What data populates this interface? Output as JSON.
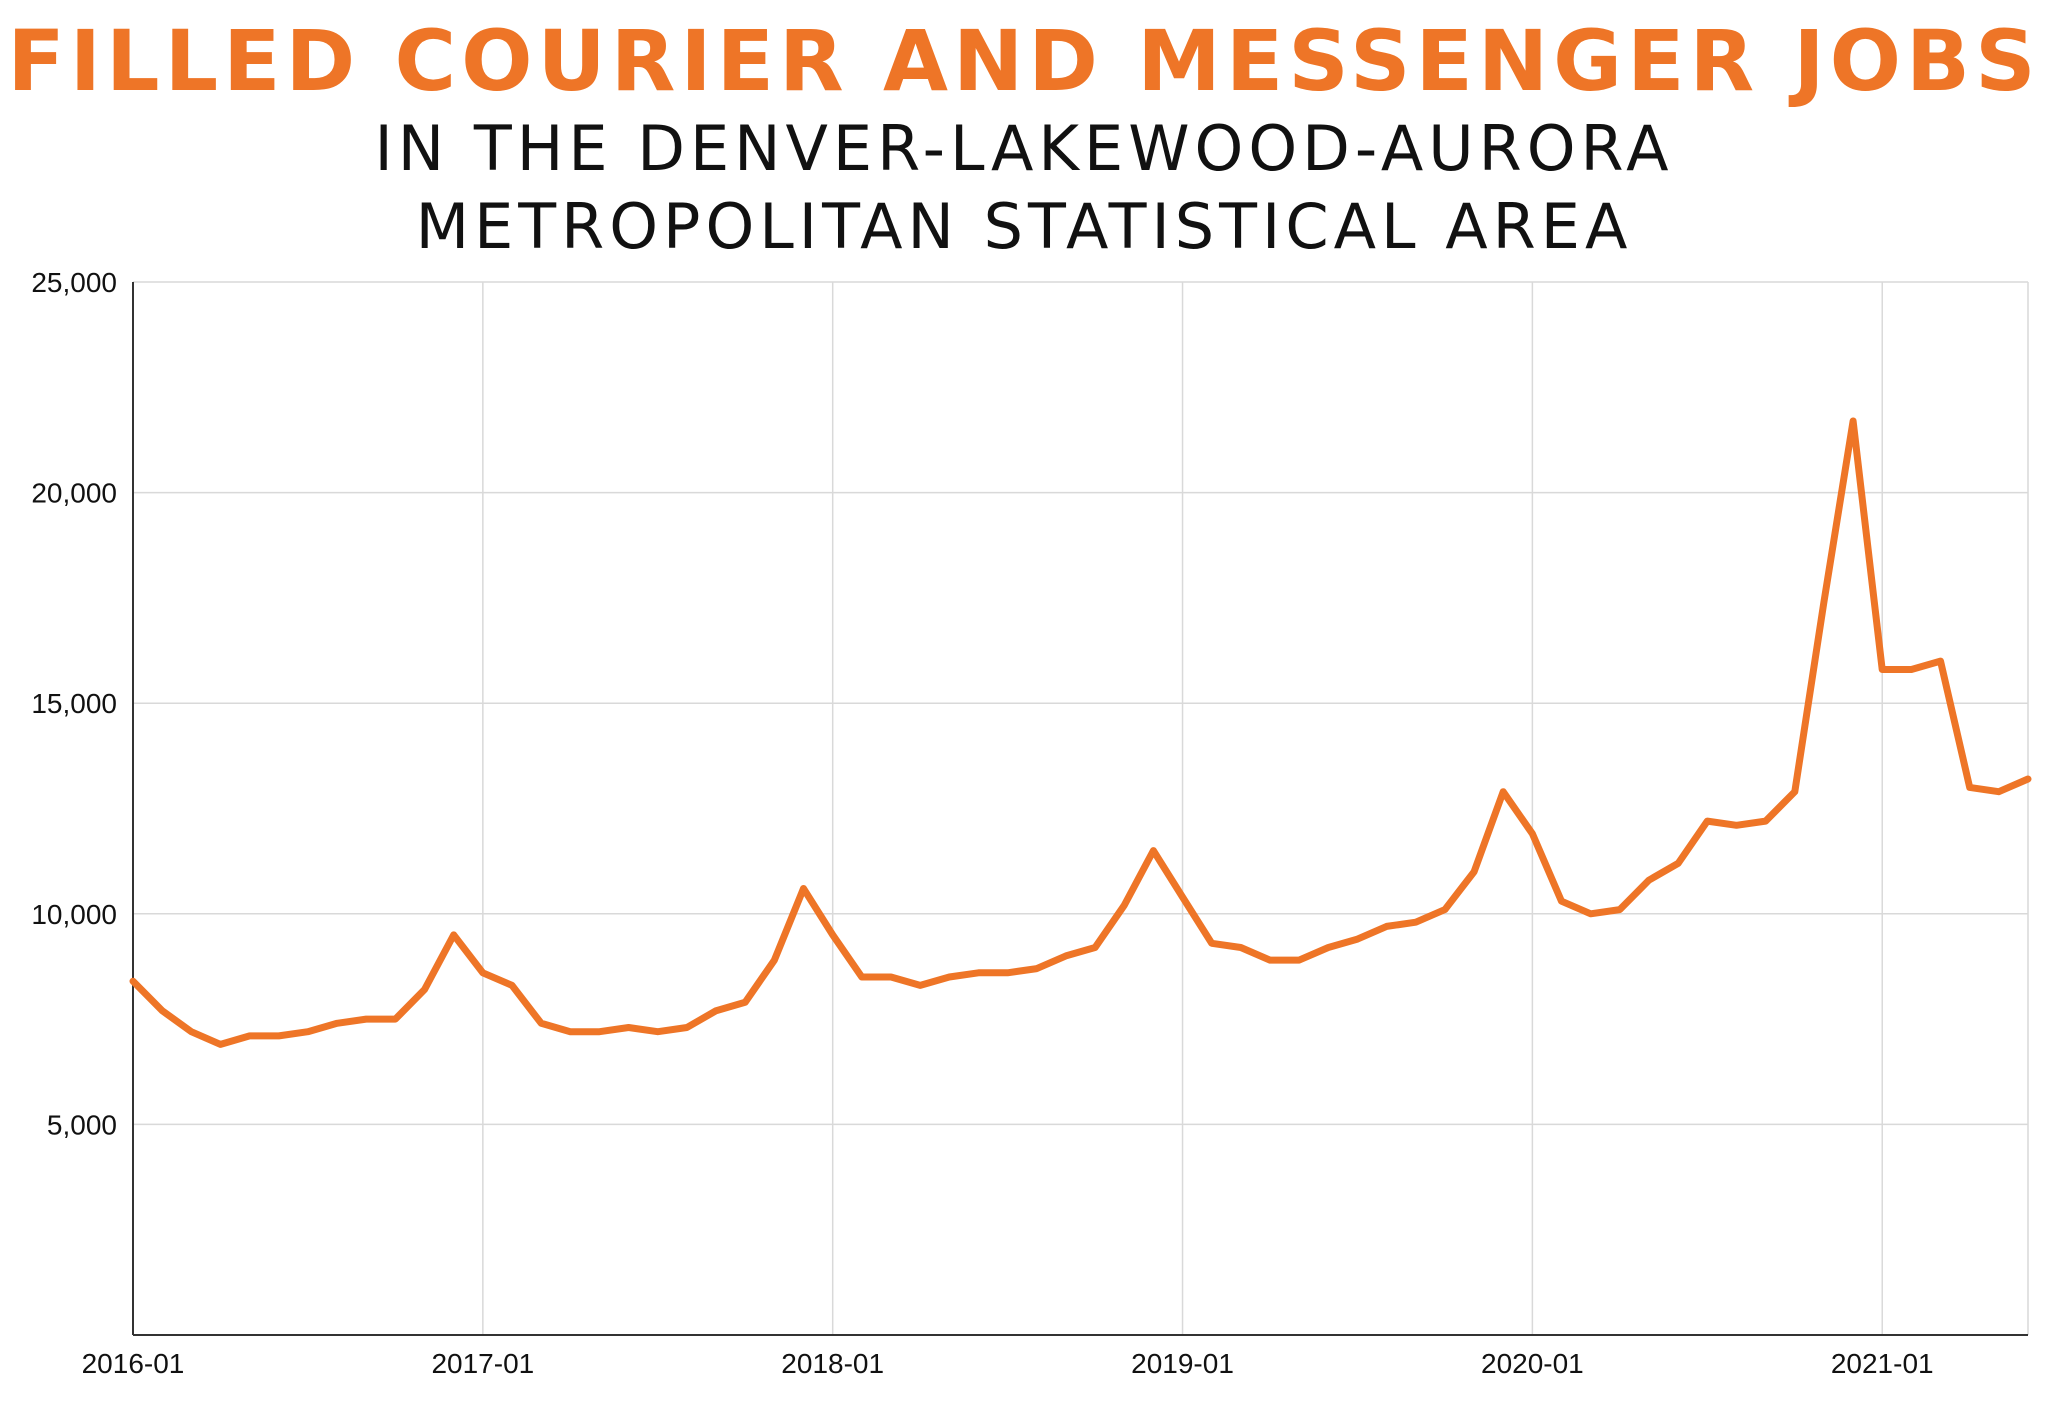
{
  "title": "FILLED COURIER AND MESSENGER JOBS",
  "subtitle_line1": "IN THE DENVER-LAKEWOOD-AURORA",
  "subtitle_line2": "METROPOLITAN STATISTICAL AREA",
  "colors": {
    "line": "#ee7527",
    "title": "#ee7527",
    "grid": "#d9d9d9",
    "text": "#111111"
  },
  "chart_data": {
    "type": "line",
    "title": "FILLED COURIER AND MESSENGER JOBS",
    "subtitle": "IN THE DENVER-LAKEWOOD-AURORA METROPOLITAN STATISTICAL AREA",
    "xlabel": "",
    "ylabel": "",
    "ylim": [
      0,
      25000
    ],
    "xlim": [
      "2016-01",
      "2021-06"
    ],
    "grid": true,
    "y_ticks": [
      5000,
      10000,
      15000,
      20000,
      25000
    ],
    "y_tick_labels": [
      "5,000",
      "10,000",
      "15,000",
      "20,000",
      "25,000"
    ],
    "x_ticks": [
      "2016-01",
      "2017-01",
      "2018-01",
      "2019-01",
      "2020-01",
      "2021-01"
    ],
    "series": [
      {
        "x": [
          "2016-01",
          "2016-02",
          "2016-03",
          "2016-04",
          "2016-05",
          "2016-06",
          "2016-07",
          "2016-08",
          "2016-09",
          "2016-10",
          "2016-11",
          "2016-12",
          "2017-01",
          "2017-02",
          "2017-03",
          "2017-04",
          "2017-05",
          "2017-06",
          "2017-07",
          "2017-08",
          "2017-09",
          "2017-10",
          "2017-11",
          "2017-12",
          "2018-01",
          "2018-02",
          "2018-03",
          "2018-04",
          "2018-05",
          "2018-06",
          "2018-07",
          "2018-08",
          "2018-09",
          "2018-10",
          "2018-11",
          "2018-12",
          "2019-01",
          "2019-02",
          "2019-03",
          "2019-04",
          "2019-05",
          "2019-06",
          "2019-07",
          "2019-08",
          "2019-09",
          "2019-10",
          "2019-11",
          "2019-12",
          "2020-01",
          "2020-02",
          "2020-03",
          "2020-04",
          "2020-05",
          "2020-06",
          "2020-07",
          "2020-08",
          "2020-09",
          "2020-10",
          "2020-11",
          "2020-12",
          "2021-01",
          "2021-02",
          "2021-03",
          "2021-04",
          "2021-05",
          "2021-06"
        ],
        "y": [
          8400,
          7700,
          7200,
          6900,
          7100,
          7100,
          7200,
          7400,
          7500,
          7500,
          8200,
          9500,
          8600,
          8300,
          7400,
          7200,
          7200,
          7300,
          7200,
          7300,
          7700,
          7900,
          8900,
          10600,
          9500,
          8500,
          8500,
          8300,
          8500,
          8600,
          8600,
          8700,
          9000,
          9200,
          10200,
          11500,
          10400,
          9300,
          9200,
          8900,
          8900,
          9200,
          9400,
          9700,
          9800,
          10100,
          11000,
          12900,
          11900,
          10300,
          10000,
          10100,
          10800,
          11200,
          12200,
          12100,
          12200,
          12900,
          17400,
          21700,
          15800,
          15800,
          16000,
          13000,
          12900,
          13200
        ]
      }
    ]
  }
}
